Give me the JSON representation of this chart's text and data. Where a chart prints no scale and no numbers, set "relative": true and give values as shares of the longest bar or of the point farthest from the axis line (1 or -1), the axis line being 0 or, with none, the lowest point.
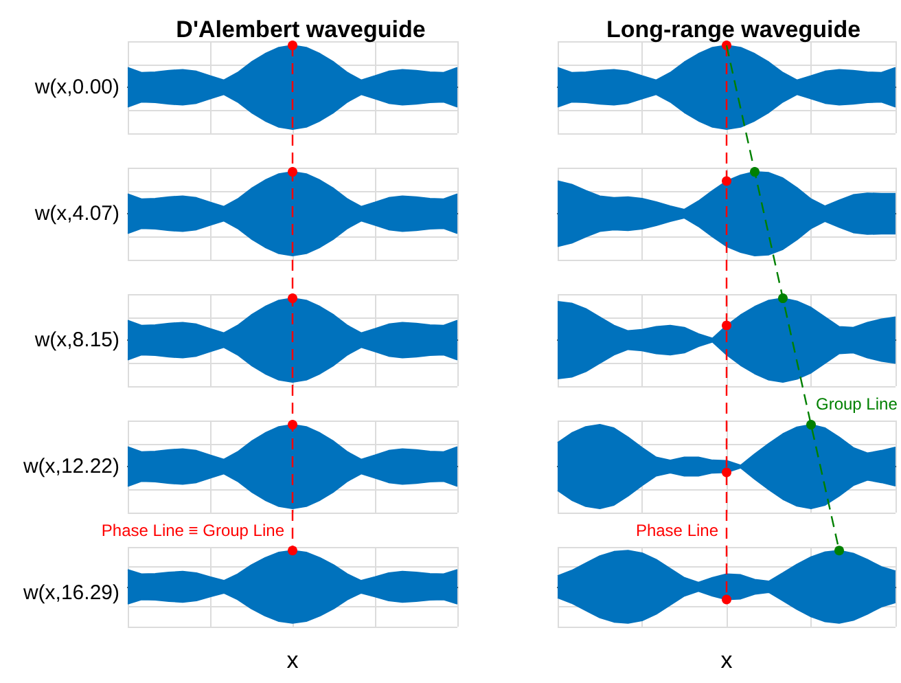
{
  "chart_data": [
    {
      "type": "area",
      "relative": true,
      "title": "D'Alembert waveguide",
      "ylabel": "w(x,0.00)",
      "grid": true,
      "categories": [
        null,
        null,
        null,
        null,
        null,
        null,
        null,
        null,
        null,
        null,
        null,
        null,
        null,
        null,
        null,
        null,
        null,
        null,
        null,
        null,
        null,
        null,
        null,
        null,
        null
      ],
      "series": [
        {
          "color": "#0072bd",
          "values": [
            0.47,
            0.35,
            0.36,
            0.4,
            0.42,
            0.38,
            0.27,
            0.17,
            0.35,
            0.6,
            0.8,
            0.95,
            1,
            0.95,
            0.8,
            0.6,
            0.35,
            0.17,
            0.27,
            0.38,
            0.42,
            0.4,
            0.36,
            0.35,
            0.47
          ]
        },
        {
          "color": "#0072bd",
          "values": [
            -0.47,
            -0.35,
            -0.36,
            -0.4,
            -0.42,
            -0.38,
            -0.27,
            -0.17,
            -0.35,
            -0.6,
            -0.8,
            -0.95,
            -1,
            -0.95,
            -0.8,
            -0.6,
            -0.35,
            -0.17,
            -0.27,
            -0.38,
            -0.42,
            -0.4,
            -0.36,
            -0.35,
            -0.47
          ]
        },
        {
          "type": "line",
          "marker": "circle",
          "color": "#ff0000",
          "values": [
            null,
            null,
            null,
            null,
            null,
            null,
            null,
            null,
            null,
            null,
            null,
            null,
            1,
            null,
            null,
            null,
            null,
            null,
            null,
            null,
            null,
            null,
            null,
            null,
            null
          ]
        }
      ]
    },
    {
      "type": "area",
      "relative": true,
      "title": "Long-range waveguide",
      "grid": true,
      "categories": [
        null,
        null,
        null,
        null,
        null,
        null,
        null,
        null,
        null,
        null,
        null,
        null,
        null,
        null,
        null,
        null,
        null,
        null,
        null,
        null,
        null,
        null,
        null,
        null,
        null
      ],
      "series": [
        {
          "color": "#0072bd",
          "values": [
            0.47,
            0.35,
            0.36,
            0.4,
            0.42,
            0.38,
            0.27,
            0.17,
            0.35,
            0.6,
            0.8,
            0.95,
            1,
            0.95,
            0.8,
            0.6,
            0.35,
            0.17,
            0.27,
            0.38,
            0.42,
            0.4,
            0.36,
            0.35,
            0.47
          ]
        },
        {
          "color": "#0072bd",
          "values": [
            -0.47,
            -0.35,
            -0.36,
            -0.4,
            -0.42,
            -0.38,
            -0.27,
            -0.17,
            -0.35,
            -0.6,
            -0.8,
            -0.95,
            -1,
            -0.95,
            -0.8,
            -0.6,
            -0.35,
            -0.17,
            -0.27,
            -0.38,
            -0.42,
            -0.4,
            -0.36,
            -0.35,
            -0.47
          ]
        },
        {
          "type": "line",
          "marker": "circle",
          "color": "#ff0000",
          "values": [
            null,
            null,
            null,
            null,
            null,
            null,
            null,
            null,
            null,
            null,
            null,
            null,
            1,
            null,
            null,
            null,
            null,
            null,
            null,
            null,
            null,
            null,
            null,
            null,
            null
          ]
        }
      ]
    },
    {
      "type": "area",
      "relative": true,
      "ylabel": "w(x,4.07)",
      "grid": true,
      "categories": [
        null,
        null,
        null,
        null,
        null,
        null,
        null,
        null,
        null,
        null,
        null,
        null,
        null,
        null,
        null,
        null,
        null,
        null,
        null,
        null,
        null,
        null,
        null,
        null,
        null
      ],
      "series": [
        {
          "color": "#0072bd",
          "values": [
            0.47,
            0.35,
            0.36,
            0.4,
            0.42,
            0.38,
            0.27,
            0.17,
            0.35,
            0.6,
            0.8,
            0.95,
            1,
            0.95,
            0.8,
            0.6,
            0.35,
            0.17,
            0.27,
            0.38,
            0.42,
            0.4,
            0.36,
            0.35,
            0.47
          ]
        },
        {
          "color": "#0072bd",
          "values": [
            -0.47,
            -0.35,
            -0.36,
            -0.4,
            -0.42,
            -0.38,
            -0.27,
            -0.17,
            -0.35,
            -0.6,
            -0.8,
            -0.95,
            -1,
            -0.95,
            -0.8,
            -0.6,
            -0.35,
            -0.17,
            -0.27,
            -0.38,
            -0.42,
            -0.4,
            -0.36,
            -0.35,
            -0.47
          ]
        },
        {
          "type": "line",
          "marker": "circle",
          "color": "#ff0000",
          "values": [
            null,
            null,
            null,
            null,
            null,
            null,
            null,
            null,
            null,
            null,
            null,
            null,
            1,
            null,
            null,
            null,
            null,
            null,
            null,
            null,
            null,
            null,
            null,
            null,
            null
          ]
        }
      ]
    },
    {
      "type": "area",
      "relative": true,
      "grid": true,
      "categories": [
        null,
        null,
        null,
        null,
        null,
        null,
        null,
        null,
        null,
        null,
        null,
        null,
        null,
        null,
        null,
        null,
        null,
        null,
        null,
        null,
        null,
        null,
        null,
        null,
        null
      ],
      "series": [
        {
          "color": "#0072bd",
          "values": [
            0.78,
            0.7,
            0.55,
            0.42,
            0.38,
            0.4,
            0.36,
            0.28,
            0.18,
            0.1,
            0.3,
            0.55,
            0.78,
            0.92,
            1,
            0.98,
            0.85,
            0.62,
            0.35,
            0.18,
            0.32,
            0.45,
            0.49,
            0.48,
            0.48
          ]
        },
        {
          "color": "#0072bd",
          "values": [
            -0.78,
            -0.7,
            -0.55,
            -0.42,
            -0.38,
            -0.4,
            -0.36,
            -0.28,
            -0.18,
            -0.1,
            -0.3,
            -0.55,
            -0.78,
            -0.92,
            -1,
            -0.98,
            -0.85,
            -0.62,
            -0.35,
            -0.18,
            -0.32,
            -0.45,
            -0.49,
            -0.48,
            -0.48
          ]
        },
        {
          "type": "line",
          "marker": "circle",
          "color": "#ff0000",
          "values": [
            null,
            null,
            null,
            null,
            null,
            null,
            null,
            null,
            null,
            null,
            null,
            null,
            0.78,
            null,
            null,
            null,
            null,
            null,
            null,
            null,
            null,
            null,
            null,
            null,
            null
          ]
        },
        {
          "type": "line",
          "marker": "circle",
          "color": "#008000",
          "values": [
            null,
            null,
            null,
            null,
            null,
            null,
            null,
            null,
            null,
            null,
            null,
            null,
            null,
            null,
            1,
            null,
            null,
            null,
            null,
            null,
            null,
            null,
            null,
            null,
            null
          ]
        }
      ]
    },
    {
      "type": "area",
      "relative": true,
      "ylabel": "w(x,8.15)",
      "grid": true,
      "categories": [
        null,
        null,
        null,
        null,
        null,
        null,
        null,
        null,
        null,
        null,
        null,
        null,
        null,
        null,
        null,
        null,
        null,
        null,
        null,
        null,
        null,
        null,
        null,
        null,
        null
      ],
      "series": [
        {
          "color": "#0072bd",
          "values": [
            0.47,
            0.35,
            0.36,
            0.4,
            0.42,
            0.38,
            0.27,
            0.17,
            0.35,
            0.6,
            0.8,
            0.95,
            1,
            0.95,
            0.8,
            0.6,
            0.35,
            0.17,
            0.27,
            0.38,
            0.42,
            0.4,
            0.36,
            0.35,
            0.47
          ]
        },
        {
          "color": "#0072bd",
          "values": [
            -0.47,
            -0.35,
            -0.36,
            -0.4,
            -0.42,
            -0.38,
            -0.27,
            -0.17,
            -0.35,
            -0.6,
            -0.8,
            -0.95,
            -1,
            -0.95,
            -0.8,
            -0.6,
            -0.35,
            -0.17,
            -0.27,
            -0.38,
            -0.42,
            -0.4,
            -0.36,
            -0.35,
            -0.47
          ]
        },
        {
          "type": "line",
          "marker": "circle",
          "color": "#ff0000",
          "values": [
            null,
            null,
            null,
            null,
            null,
            null,
            null,
            null,
            null,
            null,
            null,
            null,
            1,
            null,
            null,
            null,
            null,
            null,
            null,
            null,
            null,
            null,
            null,
            null,
            null
          ]
        }
      ]
    },
    {
      "type": "area",
      "relative": true,
      "grid": true,
      "annotations": [
        "Group Line"
      ],
      "categories": [
        null,
        null,
        null,
        null,
        null,
        null,
        null,
        null,
        null,
        null,
        null,
        null,
        null,
        null,
        null,
        null,
        null,
        null,
        null,
        null,
        null,
        null,
        null,
        null,
        null
      ],
      "series": [
        {
          "color": "#0072bd",
          "values": [
            0.92,
            0.88,
            0.75,
            0.55,
            0.35,
            0.22,
            0.25,
            0.32,
            0.35,
            0.3,
            0.15,
            0.04,
            0.35,
            0.6,
            0.8,
            0.95,
            1,
            0.93,
            0.78,
            0.55,
            0.32,
            0.3,
            0.42,
            0.5,
            0.55
          ]
        },
        {
          "color": "#0072bd",
          "values": [
            -0.92,
            -0.88,
            -0.75,
            -0.55,
            -0.35,
            -0.22,
            -0.25,
            -0.32,
            -0.35,
            -0.3,
            -0.15,
            -0.04,
            -0.35,
            -0.6,
            -0.8,
            -0.95,
            -1,
            -0.93,
            -0.78,
            -0.55,
            -0.32,
            -0.3,
            -0.42,
            -0.5,
            -0.55
          ]
        },
        {
          "type": "line",
          "marker": "circle",
          "color": "#008000",
          "values": [
            null,
            null,
            null,
            null,
            null,
            null,
            null,
            null,
            null,
            null,
            null,
            null,
            null,
            null,
            null,
            null,
            1,
            null,
            null,
            null,
            null,
            null,
            null,
            null,
            null
          ]
        },
        {
          "type": "line",
          "marker": "circle",
          "color": "#ff0000",
          "values": [
            null,
            null,
            null,
            null,
            null,
            null,
            null,
            null,
            null,
            null,
            null,
            null,
            0.35,
            null,
            null,
            null,
            null,
            null,
            null,
            null,
            null,
            null,
            null,
            null,
            null
          ]
        }
      ]
    },
    {
      "type": "area",
      "relative": true,
      "ylabel": "w(x,12.22)",
      "grid": true,
      "annotations": [
        "Phase Line ≡ Group Line"
      ],
      "categories": [
        null,
        null,
        null,
        null,
        null,
        null,
        null,
        null,
        null,
        null,
        null,
        null,
        null,
        null,
        null,
        null,
        null,
        null,
        null,
        null,
        null,
        null,
        null,
        null,
        null
      ],
      "series": [
        {
          "color": "#0072bd",
          "values": [
            0.47,
            0.35,
            0.36,
            0.4,
            0.42,
            0.38,
            0.27,
            0.17,
            0.35,
            0.6,
            0.8,
            0.95,
            1,
            0.95,
            0.8,
            0.6,
            0.35,
            0.17,
            0.27,
            0.38,
            0.42,
            0.4,
            0.36,
            0.35,
            0.47
          ]
        },
        {
          "color": "#0072bd",
          "values": [
            -0.47,
            -0.35,
            -0.36,
            -0.4,
            -0.42,
            -0.38,
            -0.27,
            -0.17,
            -0.35,
            -0.6,
            -0.8,
            -0.95,
            -1,
            -0.95,
            -0.8,
            -0.6,
            -0.35,
            -0.17,
            -0.27,
            -0.38,
            -0.42,
            -0.4,
            -0.36,
            -0.35,
            -0.47
          ]
        },
        {
          "type": "line",
          "marker": "circle",
          "color": "#ff0000",
          "values": [
            null,
            null,
            null,
            null,
            null,
            null,
            null,
            null,
            null,
            null,
            null,
            null,
            1,
            null,
            null,
            null,
            null,
            null,
            null,
            null,
            null,
            null,
            null,
            null,
            null
          ]
        }
      ]
    },
    {
      "type": "area",
      "relative": true,
      "grid": true,
      "annotations": [
        "Phase Line"
      ],
      "categories": [
        null,
        null,
        null,
        null,
        null,
        null,
        null,
        null,
        null,
        null,
        null,
        null,
        null,
        null,
        null,
        null,
        null,
        null,
        null,
        null,
        null,
        null,
        null,
        null,
        null
      ],
      "series": [
        {
          "color": "#0072bd",
          "values": [
            0.57,
            0.8,
            0.95,
            1,
            0.92,
            0.7,
            0.45,
            0.22,
            0.15,
            0.22,
            0.22,
            0.15,
            0.14,
            0.03,
            0.3,
            0.55,
            0.78,
            0.94,
            1,
            0.92,
            0.7,
            0.45,
            0.32,
            0.38,
            0.46
          ]
        },
        {
          "color": "#0072bd",
          "values": [
            -0.57,
            -0.8,
            -0.95,
            -1,
            -0.92,
            -0.7,
            -0.45,
            -0.22,
            -0.15,
            -0.22,
            -0.22,
            -0.15,
            -0.14,
            -0.03,
            -0.3,
            -0.55,
            -0.78,
            -0.94,
            -1,
            -0.92,
            -0.7,
            -0.45,
            -0.32,
            -0.38,
            -0.46
          ]
        },
        {
          "type": "line",
          "marker": "circle",
          "color": "#ff0000",
          "values": [
            null,
            null,
            null,
            null,
            null,
            null,
            null,
            null,
            null,
            null,
            null,
            null,
            -0.14,
            null,
            null,
            null,
            null,
            null,
            null,
            null,
            null,
            null,
            null,
            null,
            null
          ]
        },
        {
          "type": "line",
          "marker": "circle",
          "color": "#008000",
          "values": [
            null,
            null,
            null,
            null,
            null,
            null,
            null,
            null,
            null,
            null,
            null,
            null,
            null,
            null,
            null,
            null,
            null,
            null,
            1,
            null,
            null,
            null,
            null,
            null,
            null
          ]
        }
      ]
    },
    {
      "type": "area",
      "relative": true,
      "ylabel": "w(x,16.29)",
      "xlabel": "x",
      "grid": true,
      "categories": [
        null,
        null,
        null,
        null,
        null,
        null,
        null,
        null,
        null,
        null,
        null,
        null,
        null,
        null,
        null,
        null,
        null,
        null,
        null,
        null,
        null,
        null,
        null,
        null,
        null
      ],
      "series": [
        {
          "color": "#0072bd",
          "values": [
            0.47,
            0.35,
            0.36,
            0.4,
            0.42,
            0.38,
            0.27,
            0.17,
            0.35,
            0.6,
            0.8,
            0.95,
            1,
            0.95,
            0.8,
            0.6,
            0.35,
            0.17,
            0.27,
            0.38,
            0.42,
            0.4,
            0.36,
            0.35,
            0.47
          ]
        },
        {
          "color": "#0072bd",
          "values": [
            -0.47,
            -0.35,
            -0.36,
            -0.4,
            -0.42,
            -0.38,
            -0.27,
            -0.17,
            -0.35,
            -0.6,
            -0.8,
            -0.95,
            -1,
            -0.95,
            -0.8,
            -0.6,
            -0.35,
            -0.17,
            -0.27,
            -0.38,
            -0.42,
            -0.4,
            -0.36,
            -0.35,
            -0.47
          ]
        },
        {
          "type": "line",
          "marker": "circle",
          "color": "#ff0000",
          "values": [
            null,
            null,
            null,
            null,
            null,
            null,
            null,
            null,
            null,
            null,
            null,
            null,
            1,
            null,
            null,
            null,
            null,
            null,
            null,
            null,
            null,
            null,
            null,
            null,
            null
          ]
        }
      ]
    },
    {
      "type": "area",
      "relative": true,
      "xlabel": "x",
      "grid": true,
      "categories": [
        null,
        null,
        null,
        null,
        null,
        null,
        null,
        null,
        null,
        null,
        null,
        null,
        null,
        null,
        null,
        null,
        null,
        null,
        null,
        null,
        null,
        null,
        null,
        null,
        null
      ],
      "series": [
        {
          "color": "#0072bd",
          "values": [
            0.3,
            0.45,
            0.65,
            0.85,
            0.97,
            1,
            0.93,
            0.75,
            0.5,
            0.25,
            0.12,
            0.25,
            0.35,
            0.33,
            0.2,
            0.15,
            0.38,
            0.62,
            0.82,
            0.96,
            1,
            0.92,
            0.75,
            0.55,
            0.43
          ]
        },
        {
          "color": "#0072bd",
          "values": [
            -0.3,
            -0.45,
            -0.65,
            -0.85,
            -0.97,
            -1,
            -0.93,
            -0.75,
            -0.5,
            -0.25,
            -0.12,
            -0.25,
            -0.35,
            -0.33,
            -0.2,
            -0.15,
            -0.38,
            -0.62,
            -0.82,
            -0.96,
            -1,
            -0.92,
            -0.75,
            -0.55,
            -0.43
          ]
        },
        {
          "type": "line",
          "marker": "circle",
          "color": "#ff0000",
          "values": [
            null,
            null,
            null,
            null,
            null,
            null,
            null,
            null,
            null,
            null,
            null,
            null,
            -0.35,
            null,
            null,
            null,
            null,
            null,
            null,
            null,
            null,
            null,
            null,
            null,
            null
          ]
        },
        {
          "type": "line",
          "marker": "circle",
          "color": "#008000",
          "values": [
            null,
            null,
            null,
            null,
            null,
            null,
            null,
            null,
            null,
            null,
            null,
            null,
            null,
            null,
            null,
            null,
            null,
            null,
            null,
            null,
            1,
            null,
            null,
            null,
            null
          ]
        }
      ]
    }
  ]
}
